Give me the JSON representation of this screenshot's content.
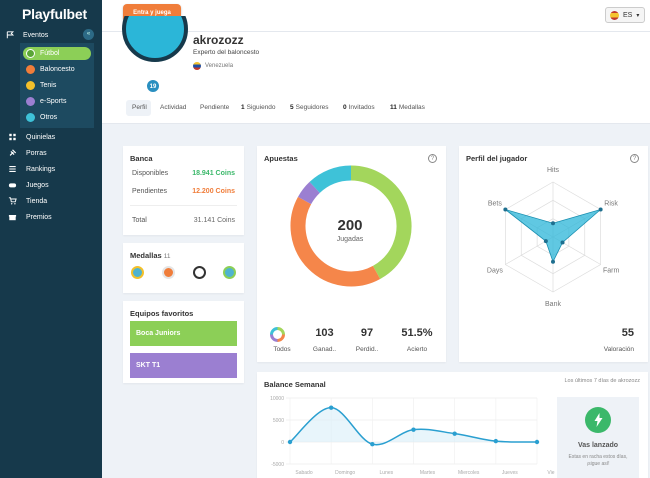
{
  "brand": "Playfulbet",
  "nav": {
    "eventos": "Eventos",
    "collapse": "«",
    "sports": [
      {
        "label": "Fútbol",
        "color": "#8ccf57"
      },
      {
        "label": "Baloncesto",
        "color": "#f07d3a"
      },
      {
        "label": "Tenis",
        "color": "#f3c02b"
      },
      {
        "label": "e-Sports",
        "color": "#9b7fd1"
      },
      {
        "label": "Otros",
        "color": "#3ec2d8"
      }
    ],
    "items": [
      "Quinielas",
      "Porras",
      "Rankings",
      "Juegos",
      "Tienda",
      "Premios"
    ]
  },
  "topbar": {
    "cta": "Entra y juega",
    "lang": "ES"
  },
  "profile": {
    "level": "19",
    "username": "akrozozz",
    "title": "Experto del baloncesto",
    "country": "Venezuela",
    "tabs": [
      {
        "count": "",
        "label": "Perfil"
      },
      {
        "count": "",
        "label": "Actividad"
      },
      {
        "count": "",
        "label": "Pendiente"
      },
      {
        "count": "1",
        "label": "Siguiendo"
      },
      {
        "count": "5",
        "label": "Seguidores"
      },
      {
        "count": "0",
        "label": "Invitados"
      },
      {
        "count": "11",
        "label": "Medallas"
      }
    ]
  },
  "banca": {
    "title": "Banca",
    "disponibles_label": "Disponibles",
    "disponibles": "18.941 Coins",
    "pendientes_label": "Pendientes",
    "pendientes": "12.200 Coins",
    "total_label": "Total",
    "total": "31.141 Coins"
  },
  "medallas": {
    "title": "Medallas",
    "count": "11"
  },
  "equipos": {
    "title": "Equipos favoritos",
    "teams": [
      {
        "name": "Boca Juniors",
        "color": "#8ccf57"
      },
      {
        "name": "SKT T1",
        "color": "#9b7fd1"
      }
    ]
  },
  "apuestas": {
    "title": "Apuestas",
    "help": "?",
    "center_value": "200",
    "center_label": "Jugadas",
    "stats": [
      {
        "value": "",
        "label": "Todos"
      },
      {
        "value": "103",
        "label": "Ganad.."
      },
      {
        "value": "97",
        "label": "Perdid.."
      },
      {
        "value": "51.5%",
        "label": "Acierto"
      }
    ],
    "chart_data": {
      "type": "pie",
      "labels": [
        "Fútbol",
        "Baloncesto",
        "e-Sports",
        "Otros"
      ],
      "values": [
        42,
        41,
        5,
        12
      ],
      "colors": [
        "#a3d65c",
        "#f5864a",
        "#9b7fd1",
        "#3ec2d8"
      ]
    }
  },
  "perfil_jugador": {
    "title": "Perfil del jugador",
    "help": "?",
    "score": "55",
    "score_label": "Valoración",
    "chart_data": {
      "type": "radar",
      "axes": [
        "Hits",
        "Risk",
        "Farm",
        "Bank",
        "Days",
        "Bets"
      ],
      "values": [
        0.25,
        1.0,
        0.2,
        0.45,
        0.15,
        1.0
      ],
      "ylim": [
        0,
        1
      ],
      "color": "#2bb6d8"
    }
  },
  "balance": {
    "title": "Balance Semanal",
    "aside": "Los últimos 7 días de akrozozz",
    "status_title": "Vas lanzado",
    "status_text_1": "Estas en racha estos días,",
    "status_text_2": "¡sigue así!",
    "chart_data": {
      "type": "line",
      "categories": [
        "Sabado",
        "Domingo",
        "Lunes",
        "Martes",
        "Miercoles",
        "Jueves",
        "Vie"
      ],
      "values": [
        0,
        7800,
        -500,
        2800,
        1900,
        200,
        0
      ],
      "ylim": [
        -5000,
        10000
      ],
      "yticks": [
        "10000",
        "5000",
        "0",
        "-5000"
      ],
      "color": "#2a9fd0"
    }
  }
}
